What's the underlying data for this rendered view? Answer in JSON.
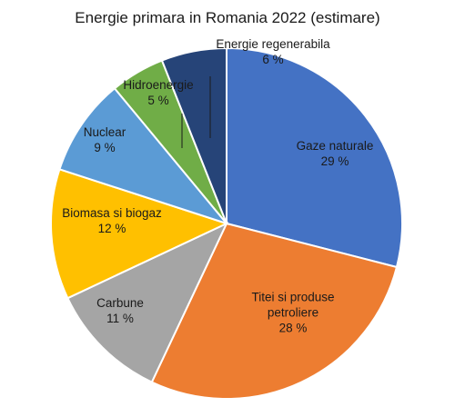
{
  "chart_data": {
    "type": "pie",
    "title": "Energie primara in Romania 2022 (estimare)",
    "slices": [
      {
        "label_lines": [
          "Gaze naturale"
        ],
        "percent_text": "29 %",
        "value": 29,
        "color": "#4472C4"
      },
      {
        "label_lines": [
          "Titei si produse",
          "petroliere"
        ],
        "percent_text": "28 %",
        "value": 28,
        "color": "#ED7D31"
      },
      {
        "label_lines": [
          "Carbune"
        ],
        "percent_text": "11 %",
        "value": 11,
        "color": "#A5A5A5"
      },
      {
        "label_lines": [
          "Biomasa si biogaz"
        ],
        "percent_text": "12 %",
        "value": 12,
        "color": "#FFC000"
      },
      {
        "label_lines": [
          "Nuclear"
        ],
        "percent_text": "9 %",
        "value": 9,
        "color": "#5B9BD5"
      },
      {
        "label_lines": [
          "Hidroenergie"
        ],
        "percent_text": "5 %",
        "value": 5,
        "color": "#70AD47"
      },
      {
        "label_lines": [
          "Energie regenerabila"
        ],
        "percent_text": "6 %",
        "value": 6,
        "color": "#264478"
      }
    ],
    "start_angle": "12 o'clock",
    "direction": "clockwise",
    "legend": "none"
  }
}
